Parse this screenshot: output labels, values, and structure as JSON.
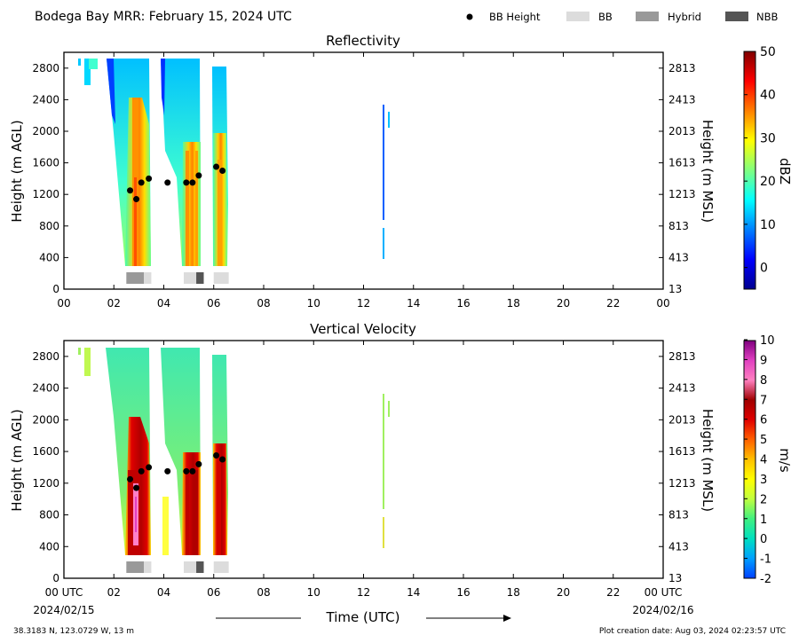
{
  "header": {
    "title": "Bodega Bay MRR:  February 15, 2024 UTC"
  },
  "legend": {
    "items": [
      {
        "label": "BB Height",
        "symbol": "dot",
        "color": "#000000"
      },
      {
        "label": "BB",
        "symbol": "box",
        "color": "#dcdcdc"
      },
      {
        "label": "Hybrid",
        "symbol": "box",
        "color": "#999999"
      },
      {
        "label": "NBB",
        "symbol": "box",
        "color": "#555555"
      }
    ]
  },
  "axes": {
    "x_ticks": [
      "00",
      "02",
      "04",
      "06",
      "08",
      "10",
      "12",
      "14",
      "16",
      "18",
      "20",
      "22",
      "00"
    ],
    "x_ticks_bottom": [
      "00 UTC",
      "02",
      "04",
      "06",
      "08",
      "10",
      "12",
      "14",
      "16",
      "18",
      "20",
      "22",
      "00 UTC"
    ],
    "x_start_date": "2024/02/15",
    "x_end_date": "2024/02/16",
    "xlabel": "Time (UTC)",
    "y_left_ticks": [
      "0",
      "400",
      "800",
      "1200",
      "1600",
      "2000",
      "2400",
      "2800"
    ],
    "y_right_ticks": [
      "13",
      "413",
      "813",
      "1213",
      "1613",
      "2013",
      "2413",
      "2813"
    ],
    "ylabel_left": "Height (m AGL)",
    "ylabel_right": "Height (m MSL)"
  },
  "footer": {
    "location": "38.3183 N, 123.0729 W, 13 m",
    "creation": "Plot creation date: Aug 03, 2024 02:23:57 UTC"
  },
  "chart_data": [
    {
      "type": "heatmap",
      "title": "Reflectivity",
      "xlabel": "",
      "ylabel": "Height (m AGL)",
      "xlim": [
        0,
        24
      ],
      "ylim": [
        0,
        3000
      ],
      "colorbar": {
        "label": "dBZ",
        "range": [
          -5,
          50
        ],
        "ticks": [
          0,
          10,
          20,
          30,
          40,
          50
        ],
        "colors": [
          "#00008f",
          "#0000ff",
          "#0080ff",
          "#00ffff",
          "#80ff80",
          "#ffff00",
          "#ff8000",
          "#ff0000",
          "#800000"
        ]
      },
      "bright_band_heights": [
        {
          "t": 2.65,
          "h": 1250
        },
        {
          "t": 2.9,
          "h": 1140
        },
        {
          "t": 3.1,
          "h": 1350
        },
        {
          "t": 3.4,
          "h": 1400
        },
        {
          "t": 4.15,
          "h": 1350
        },
        {
          "t": 4.9,
          "h": 1350
        },
        {
          "t": 5.15,
          "h": 1350
        },
        {
          "t": 5.4,
          "h": 1440
        },
        {
          "t": 6.1,
          "h": 1550
        },
        {
          "t": 6.35,
          "h": 1500
        }
      ],
      "band_classification": [
        {
          "start": 2.5,
          "end": 3.2,
          "class": "Hybrid"
        },
        {
          "start": 3.2,
          "end": 3.5,
          "class": "BB"
        },
        {
          "start": 4.8,
          "end": 5.3,
          "class": "BB"
        },
        {
          "start": 5.3,
          "end": 5.6,
          "class": "NBB"
        },
        {
          "start": 6.0,
          "end": 6.6,
          "class": "BB"
        }
      ]
    },
    {
      "type": "heatmap",
      "title": "Vertical Velocity",
      "xlabel": "Time (UTC)",
      "ylabel": "Height (m AGL)",
      "xlim": [
        0,
        24
      ],
      "ylim": [
        0,
        3000
      ],
      "colorbar": {
        "label": "m/s",
        "range": [
          -2,
          10
        ],
        "ticks": [
          -2,
          -1,
          0,
          1,
          2,
          3,
          4,
          5,
          6,
          7,
          8,
          9,
          10
        ],
        "colors": [
          "#0040ff",
          "#00a0ff",
          "#00e0c0",
          "#40f080",
          "#c0ff40",
          "#ffff00",
          "#ffc000",
          "#ff6000",
          "#e00000",
          "#a00000",
          "#ff80c0",
          "#e040c0",
          "#800080"
        ]
      },
      "bright_band_heights": [
        {
          "t": 2.65,
          "h": 1250
        },
        {
          "t": 2.9,
          "h": 1140
        },
        {
          "t": 3.1,
          "h": 1350
        },
        {
          "t": 3.4,
          "h": 1400
        },
        {
          "t": 4.15,
          "h": 1350
        },
        {
          "t": 4.9,
          "h": 1350
        },
        {
          "t": 5.15,
          "h": 1350
        },
        {
          "t": 5.4,
          "h": 1440
        },
        {
          "t": 6.1,
          "h": 1550
        },
        {
          "t": 6.35,
          "h": 1500
        }
      ],
      "band_classification": [
        {
          "start": 2.5,
          "end": 3.2,
          "class": "Hybrid"
        },
        {
          "start": 3.2,
          "end": 3.5,
          "class": "BB"
        },
        {
          "start": 4.8,
          "end": 5.3,
          "class": "BB"
        },
        {
          "start": 5.3,
          "end": 5.6,
          "class": "NBB"
        },
        {
          "start": 6.0,
          "end": 6.6,
          "class": "BB"
        }
      ]
    }
  ]
}
